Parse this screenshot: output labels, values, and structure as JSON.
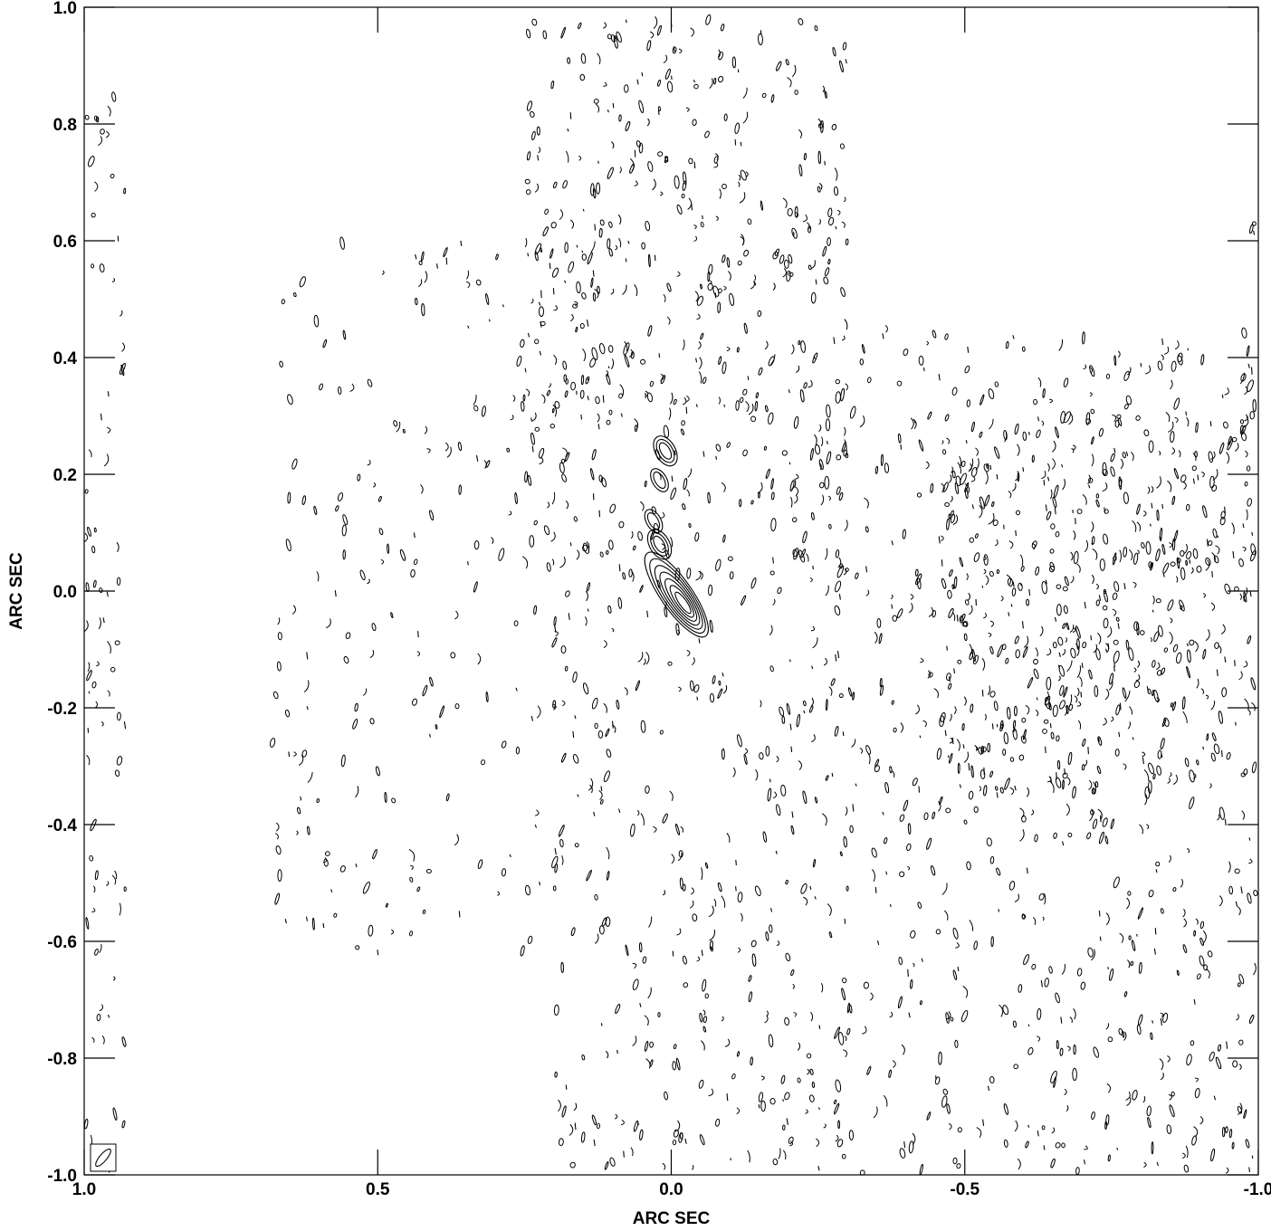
{
  "chart_data": {
    "type": "contour",
    "xlabel": "ARC SEC",
    "ylabel": "ARC SEC",
    "xlim": [
      1.0,
      -1.0
    ],
    "ylim": [
      -1.0,
      1.0
    ],
    "x_ticks": [
      {
        "value": 1.0,
        "label": "1.0"
      },
      {
        "value": 0.5,
        "label": "0.5"
      },
      {
        "value": 0.0,
        "label": "0.0"
      },
      {
        "value": -0.5,
        "label": "-0.5"
      },
      {
        "value": -1.0,
        "label": "-1.0"
      }
    ],
    "y_ticks": [
      {
        "value": 1.0,
        "label": "1.0"
      },
      {
        "value": 0.8,
        "label": "0.8"
      },
      {
        "value": 0.6,
        "label": "0.6"
      },
      {
        "value": 0.4,
        "label": "0.4"
      },
      {
        "value": 0.2,
        "label": "0.2"
      },
      {
        "value": 0.0,
        "label": "0.0"
      },
      {
        "value": -0.2,
        "label": "-0.2"
      },
      {
        "value": -0.4,
        "label": "-0.4"
      },
      {
        "value": -0.6,
        "label": "-0.6"
      },
      {
        "value": -0.8,
        "label": "-0.8"
      },
      {
        "value": -1.0,
        "label": "-1.0"
      }
    ],
    "core_source": {
      "x": -0.02,
      "y": -0.02,
      "levels": 7,
      "pa_deg": -35
    },
    "jet_knots": [
      {
        "x": 0.02,
        "y": 0.08,
        "levels": 3
      },
      {
        "x": 0.03,
        "y": 0.12,
        "levels": 2
      },
      {
        "x": 0.02,
        "y": 0.19,
        "levels": 2
      },
      {
        "x": 0.01,
        "y": 0.24,
        "levels": 3
      }
    ],
    "beam": {
      "position": "bottom-left",
      "pa_deg": 40
    },
    "noise_regions": [
      {
        "x0": 0.25,
        "x1": -0.3,
        "y0": 0.0,
        "y1": 0.98,
        "density": 2.2
      },
      {
        "x0": 0.68,
        "x1": 0.1,
        "y0": -0.62,
        "y1": 0.6,
        "density": 0.8
      },
      {
        "x0": 0.2,
        "x1": -0.2,
        "y0": -1.0,
        "y1": 0.0,
        "density": 1.4
      },
      {
        "x0": -0.2,
        "x1": -1.0,
        "y0": -1.0,
        "y1": 0.45,
        "density": 1.6
      },
      {
        "x0": -0.45,
        "x1": -0.95,
        "y0": -0.35,
        "y1": 0.3,
        "density": 2.6
      },
      {
        "x0": 1.0,
        "x1": 0.93,
        "y0": -1.0,
        "y1": 0.85,
        "density": 1.6
      },
      {
        "x0": -0.97,
        "x1": -1.0,
        "y0": -1.0,
        "y1": 0.65,
        "density": 1.8
      }
    ]
  }
}
